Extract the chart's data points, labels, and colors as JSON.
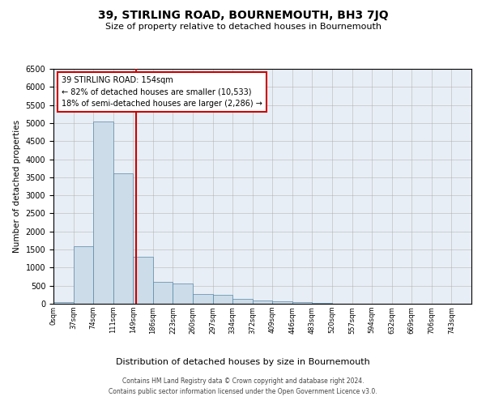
{
  "title": "39, STIRLING ROAD, BOURNEMOUTH, BH3 7JQ",
  "subtitle": "Size of property relative to detached houses in Bournemouth",
  "xlabel": "Distribution of detached houses by size in Bournemouth",
  "ylabel": "Number of detached properties",
  "bar_color": "#ccdce8",
  "bar_edgecolor": "#5588aa",
  "bin_labels": [
    "0sqm",
    "37sqm",
    "74sqm",
    "111sqm",
    "149sqm",
    "186sqm",
    "223sqm",
    "260sqm",
    "297sqm",
    "334sqm",
    "372sqm",
    "409sqm",
    "446sqm",
    "483sqm",
    "520sqm",
    "557sqm",
    "594sqm",
    "632sqm",
    "669sqm",
    "706sqm",
    "743sqm"
  ],
  "bar_heights": [
    50,
    1600,
    5050,
    3600,
    1300,
    600,
    550,
    280,
    250,
    130,
    90,
    70,
    50,
    20,
    10,
    5,
    3,
    2,
    1,
    1,
    0
  ],
  "ylim": [
    0,
    6500
  ],
  "yticks": [
    0,
    500,
    1000,
    1500,
    2000,
    2500,
    3000,
    3500,
    4000,
    4500,
    5000,
    5500,
    6000,
    6500
  ],
  "vline_color": "#cc0000",
  "annotation_text": "39 STIRLING ROAD: 154sqm\n← 82% of detached houses are smaller (10,533)\n18% of semi-detached houses are larger (2,286) →",
  "footer_line1": "Contains HM Land Registry data © Crown copyright and database right 2024.",
  "footer_line2": "Contains public sector information licensed under the Open Government Licence v3.0."
}
